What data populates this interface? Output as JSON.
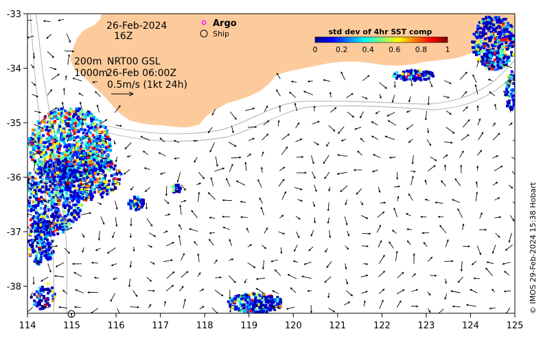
{
  "map": {
    "date": "26-Feb-2024",
    "hour": "16Z",
    "depth_200": "200m",
    "depth_1000": "1000m",
    "product": "NRT00 GSL",
    "product_time": "26-Feb 06:00Z",
    "scale_label": "0.5m/s (1kt 24h)",
    "credit": "© IMOS 29-Feb-2024 15:38 Hobart",
    "lon_ticks": [
      "114",
      "115",
      "116",
      "117",
      "118",
      "119",
      "120",
      "121",
      "122",
      "123",
      "124",
      "125"
    ],
    "lat_ticks": [
      "-33",
      "-34",
      "-35",
      "-36",
      "-37",
      "-38"
    ],
    "land_color": "#fdcb9b",
    "ocean_color": "#ffffff"
  },
  "legend": {
    "argo_label": "Argo",
    "ship_label": "Ship",
    "argo_color": "#ff00ff"
  },
  "colorbar": {
    "title": "std dev of 4hr SST comp",
    "ticks": [
      "0",
      "0.2",
      "0.4",
      "0.6",
      "0.8",
      "1"
    ],
    "colors": [
      "#00008f",
      "#0000ff",
      "#007fff",
      "#00ffff",
      "#7fff7f",
      "#ffff00",
      "#ff7f00",
      "#ff0000",
      "#7f0000"
    ]
  }
}
